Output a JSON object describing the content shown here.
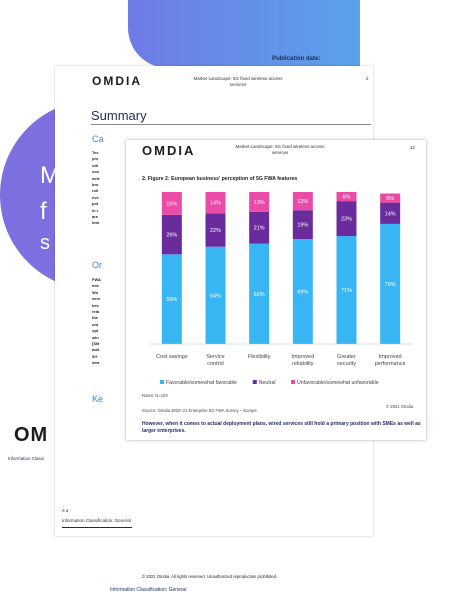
{
  "cover": {
    "publication_label": "Publication date:",
    "side_letters": [
      "M",
      "f",
      "s"
    ],
    "logo": "OM"
  },
  "page2": {
    "logo": "OMDIA",
    "header_title": "Market Landscape: 5G fixed wireless access services",
    "page_number": "2",
    "section_title": "Summary",
    "side_headings": [
      "Ca",
      "Or",
      "Ke"
    ],
    "text_column_1": [
      "Tec",
      "pre",
      "oth",
      "con",
      "sele",
      "bro",
      "roll",
      "eve",
      "pot",
      "in t",
      "are",
      "into"
    ],
    "text_column_2": [
      "FWA",
      "mic",
      "Wo",
      "serv",
      "bee",
      "rela",
      "the",
      "unt",
      "opt",
      "win",
      "[SM",
      "add",
      "5G",
      "stra"
    ],
    "info_classification": "Information Classification: General",
    "copyright_mark": "© 2",
    "side_info_classification": "Information Classi"
  },
  "page3": {
    "logo": "OMDIA",
    "header_title": "Market Landscape: 5G fixed wireless access services",
    "page_number": "12",
    "figure_title": "2. Figure 2: European business' perception of 5G FWA features",
    "notes": "Notes: N=103",
    "source": "Source: Omdia 2020–21 Enterprise 5G FWA Survey – Europe",
    "copyright": "© 2021 Omdia",
    "body_text": "However, when it comes to actual deployment plans, wired services still hold a primary position with SMEs as well as larger enterprises."
  },
  "chart_data": {
    "type": "bar",
    "stacked": true,
    "categories": [
      "Cost savings",
      "Service control",
      "Flexibility",
      "Improved reliability",
      "Greater security",
      "Improved performance"
    ],
    "series": [
      {
        "name": "Favorable/somewhat favorable",
        "color": "#38b6f4",
        "values": [
          59,
          64,
          66,
          69,
          71,
          79
        ]
      },
      {
        "name": "Neutral",
        "color": "#6a2c9c",
        "values": [
          26,
          22,
          21,
          19,
          23,
          14
        ]
      },
      {
        "name": "Unfavorable/somewhat unfavorable",
        "color": "#e94ba6",
        "values": [
          15,
          14,
          13,
          12,
          6,
          6
        ]
      }
    ],
    "ylim": [
      0,
      100
    ],
    "grid": false,
    "legend_position": "bottom"
  },
  "footer": {
    "copyright": "© 2021 Omdia. All rights reserved. Unauthorized reproduction prohibited.",
    "info_classification": "Information Classification: General"
  }
}
